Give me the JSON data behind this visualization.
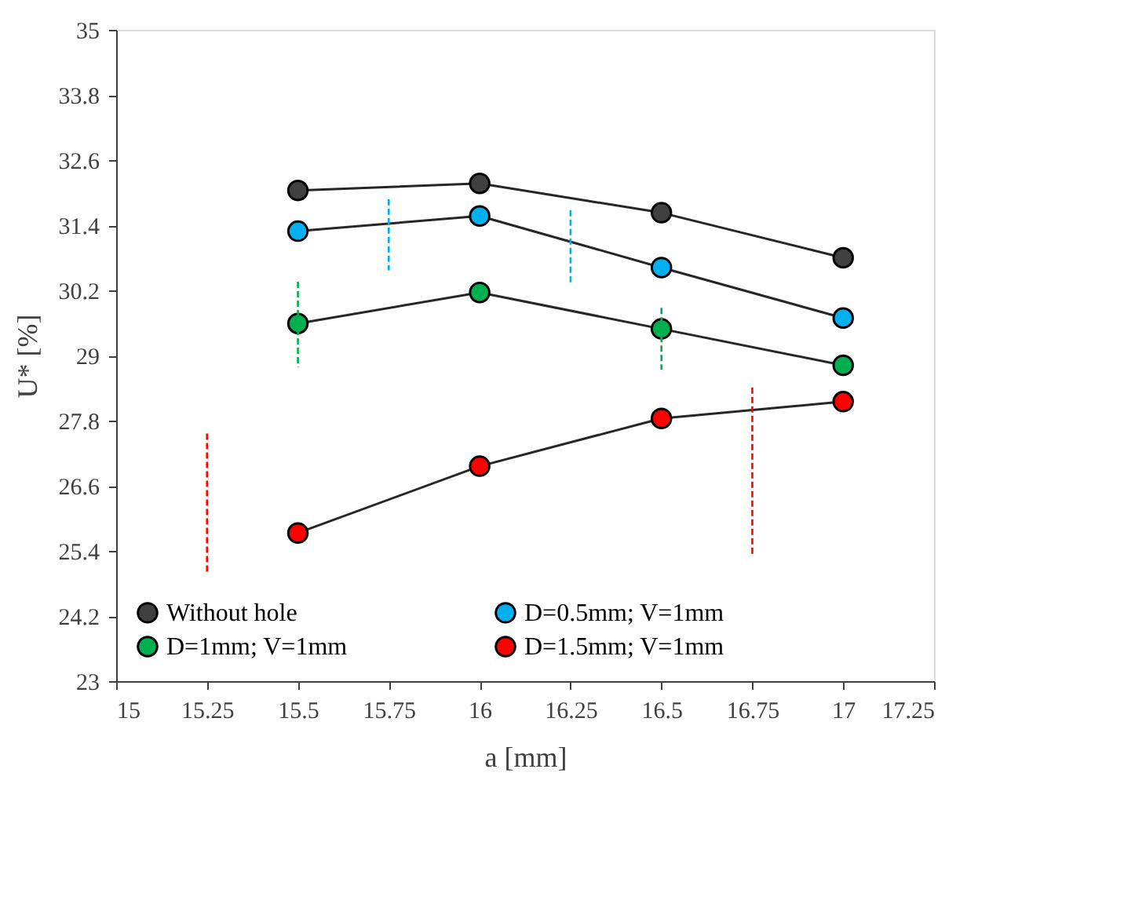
{
  "chart_data": {
    "type": "line",
    "xlabel": "a [mm]",
    "ylabel": "U* [%]",
    "xlim": [
      15,
      17.25
    ],
    "xticks": [
      15,
      15.25,
      15.5,
      15.75,
      16,
      16.25,
      16.5,
      16.75,
      17,
      17.25
    ],
    "ylim": [
      23,
      35
    ],
    "yticks": [
      23,
      24.2,
      25.4,
      26.6,
      27.8,
      29,
      30.2,
      31.4,
      32.6,
      33.8,
      35
    ],
    "grid": false,
    "legend": "bottom",
    "marker": "circle",
    "line_style": "solid",
    "x": [
      15.5,
      16,
      16.5,
      17
    ],
    "series": [
      {
        "name": "Without hole",
        "color": "#404040",
        "values": [
          32.04,
          32.17,
          31.63,
          30.8
        ]
      },
      {
        "name": "D=0.5mm; V=1mm",
        "color": "#00b0f0",
        "values": [
          31.29,
          31.57,
          30.62,
          29.69
        ]
      },
      {
        "name": "D=1mm; V=1mm",
        "color": "#00b050",
        "values": [
          29.59,
          30.16,
          29.49,
          28.82
        ]
      },
      {
        "name": "D=1.5mm; V=1mm",
        "color": "#ff0000",
        "values": [
          25.73,
          26.96,
          27.84,
          28.15
        ]
      },
      {
        "type": "line",
        "marker": "none",
        "line_style": "dashed",
        "color": "#00b0f0",
        "x": [
          15.75,
          15.75
        ],
        "values": [
          31.88,
          30.57
        ]
      },
      {
        "type": "line",
        "marker": "none",
        "line_style": "dashed",
        "color": "#00b0f0",
        "x": [
          16.25,
          16.25
        ],
        "values": [
          31.68,
          30.29
        ]
      },
      {
        "type": "line",
        "marker": "none",
        "line_style": "dashed",
        "color": "#00b050",
        "x": [
          15.5,
          15.5
        ],
        "values": [
          30.36,
          28.79
        ]
      },
      {
        "type": "line",
        "marker": "none",
        "line_style": "dashed",
        "color": "#00b050",
        "x": [
          16.5,
          16.5
        ],
        "values": [
          29.88,
          28.74
        ]
      },
      {
        "type": "line",
        "marker": "none",
        "line_style": "dashed",
        "color": "#ff0000",
        "x": [
          15.25,
          15.25
        ],
        "values": [
          27.56,
          24.96
        ]
      },
      {
        "type": "line",
        "marker": "none",
        "line_style": "dashed",
        "color": "#ff0000",
        "x": [
          16.75,
          16.75
        ],
        "values": [
          28.41,
          25.32
        ]
      }
    ]
  }
}
